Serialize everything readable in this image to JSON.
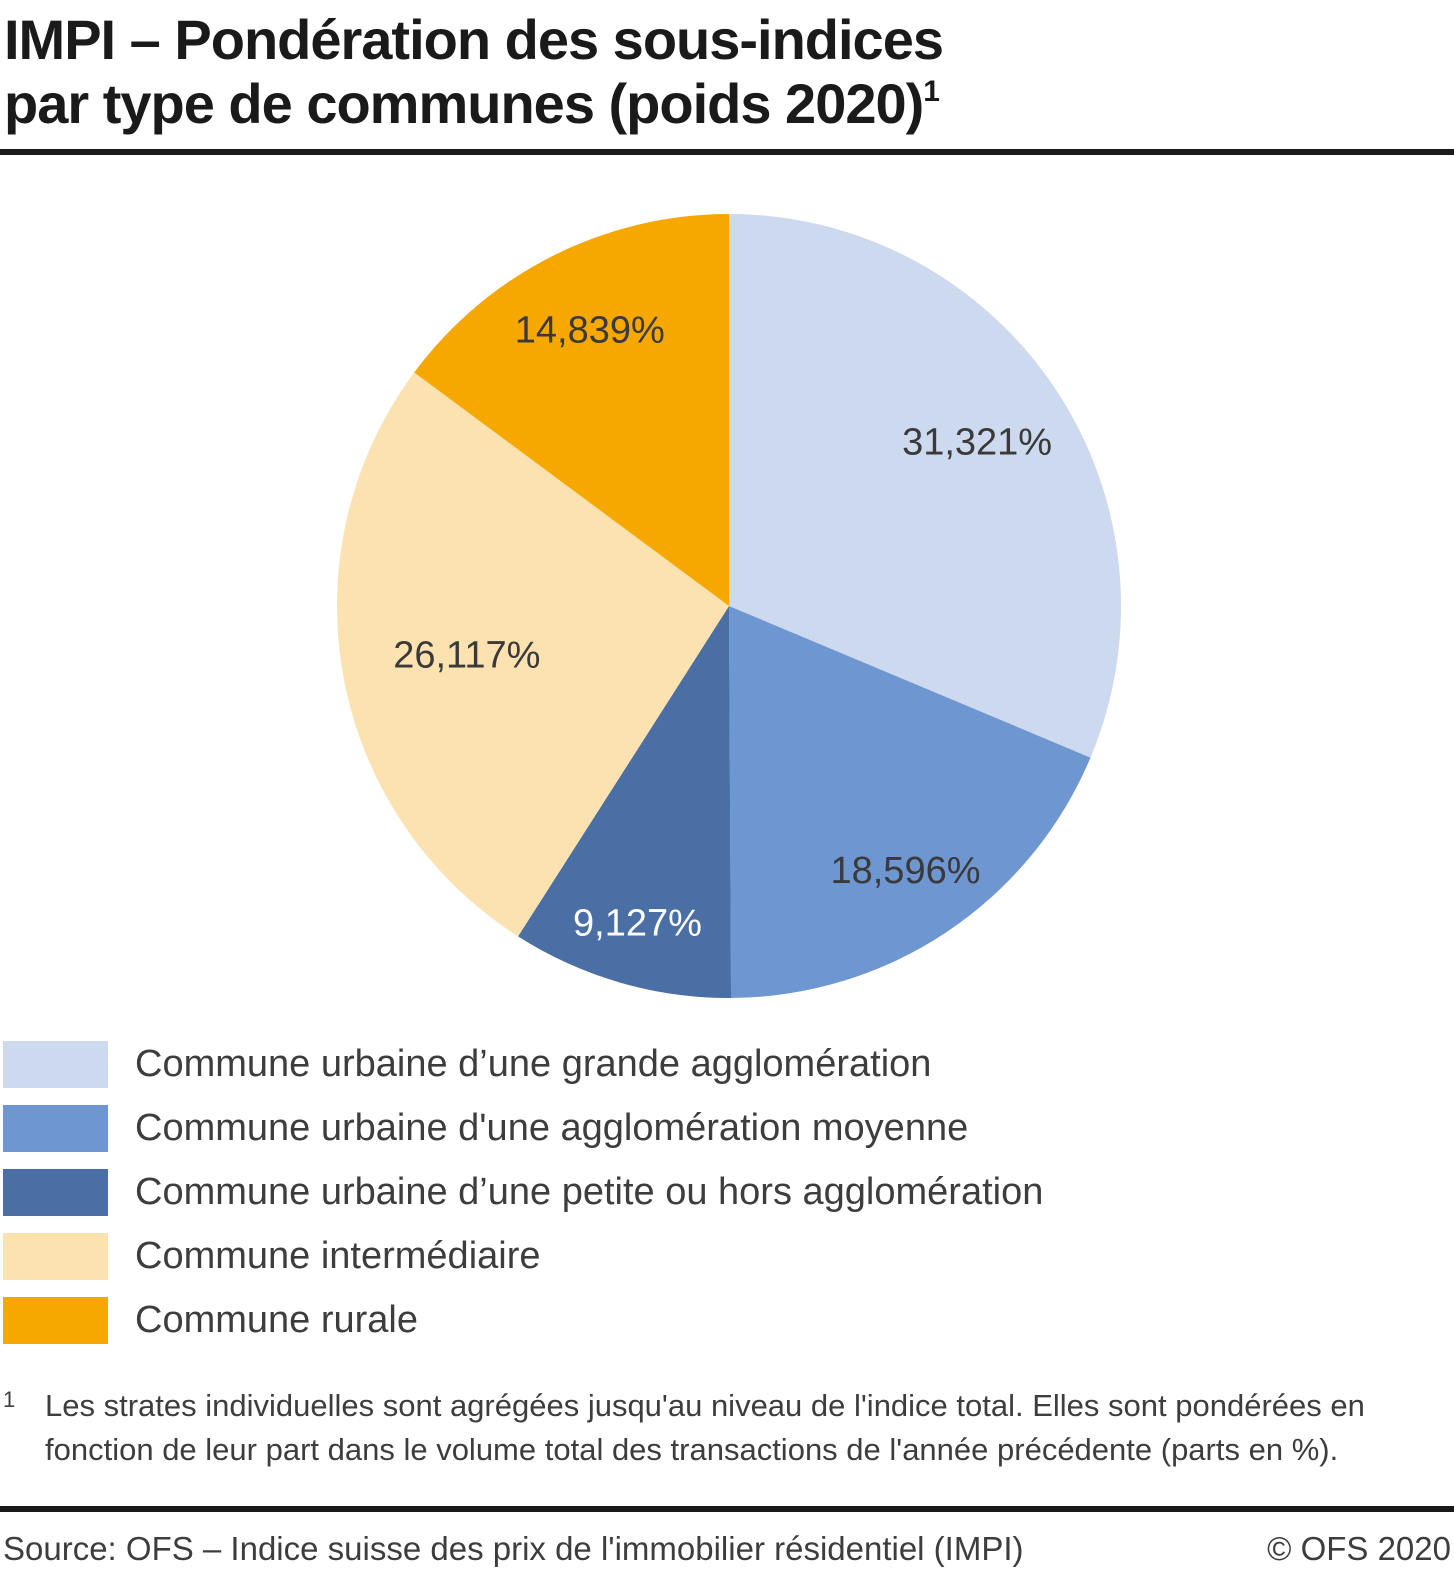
{
  "title": {
    "line1": "IMPI – Pondération des sous-indices",
    "line2": "par type de communes (poids 2020)",
    "footnote_marker": "1"
  },
  "chart_data": {
    "type": "pie",
    "title": "IMPI – Pondération des sous-indices par type de communes (poids 2020)",
    "unit": "%",
    "start_angle_deg": 0,
    "direction": "clockwise",
    "legend_position": "bottom-left",
    "slices": [
      {
        "label": "Commune urbaine d’une grande agglomération",
        "value": 31.321,
        "display": "31,321%",
        "color": "#cdd9ee",
        "label_color": "#3a3a3a"
      },
      {
        "label": "Commune urbaine d'une agglomération moyenne",
        "value": 18.596,
        "display": "18,596%",
        "color": "#6e96d0",
        "label_color": "#3a3a3a"
      },
      {
        "label": "Commune urbaine d’une petite ou hors agglomération",
        "value": 9.127,
        "display": "9,127%",
        "color": "#4a6fa5",
        "label_color": "#ffffff"
      },
      {
        "label": "Commune intermédiaire",
        "value": 26.117,
        "display": "26,117%",
        "color": "#fce2b0",
        "label_color": "#3a3a3a"
      },
      {
        "label": "Commune rurale",
        "value": 14.839,
        "display": "14,839%",
        "color": "#f6a800",
        "label_color": "#3a3a3a"
      }
    ]
  },
  "footnote": {
    "marker": "1",
    "text": "Les strates individuelles sont agrégées jusqu'au niveau de l'indice total. Elles sont pondérées en fonction de leur part dans le volume total des transactions de l'année précédente (parts en %)."
  },
  "footer": {
    "source": "Source: OFS – Indice suisse des prix de l'immobilier résidentiel (IMPI)",
    "copyright": "© OFS 2020"
  }
}
